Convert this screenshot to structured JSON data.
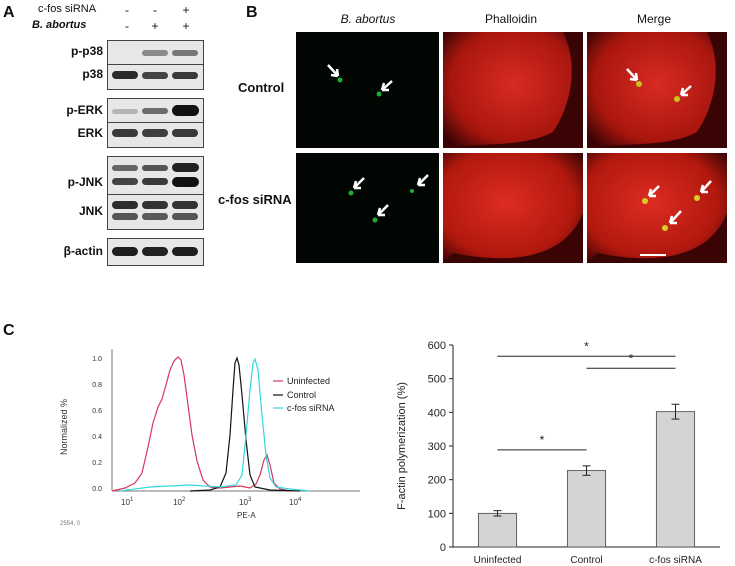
{
  "panel_a": {
    "letter": "A",
    "conditions": [
      {
        "label": "c-fos siRNA",
        "values": [
          "-",
          "-",
          "+"
        ]
      },
      {
        "label": "B. abortus",
        "values": [
          "-",
          "+",
          "+"
        ]
      }
    ],
    "blots": [
      {
        "label": "p-p38"
      },
      {
        "label": "p38"
      },
      {
        "label": "p-ERK"
      },
      {
        "label": "ERK"
      },
      {
        "label": "p-JNK"
      },
      {
        "label": "JNK"
      },
      {
        "label": "β-actin"
      }
    ]
  },
  "panel_b": {
    "letter": "B",
    "columns": [
      "B. abortus",
      "Phalloidin",
      "Merge"
    ],
    "rows": [
      "Control",
      "c-fos siRNA"
    ]
  },
  "panel_c": {
    "letter": "C",
    "histogram": {
      "ylabel": "Normalized %",
      "xlabel": "PE-A",
      "corner_label": "2554, 0",
      "y_ticks": [
        "1.0",
        "0.8",
        "0.6",
        "0.4",
        "0.2",
        "0.0"
      ],
      "x_ticks": [
        "10",
        "10",
        "10",
        "10"
      ],
      "x_tick_exponents": [
        "1",
        "2",
        "3",
        "4"
      ],
      "legend": [
        {
          "name": "Uninfected",
          "color": "#d6375a"
        },
        {
          "name": "Control",
          "color": "#111111"
        },
        {
          "name": "c-fos siRNA",
          "color": "#33d6e0"
        }
      ]
    }
  },
  "chart_data": {
    "type": "bar",
    "categories": [
      "Uninfected",
      "Control",
      "c-fos siRNA"
    ],
    "values": [
      100,
      227,
      402
    ],
    "errors": [
      8,
      14,
      22
    ],
    "ylabel": "F-actin polymerization (%)",
    "xlabel": "",
    "ylim": [
      0,
      600
    ],
    "yticks": [
      0,
      100,
      200,
      300,
      400,
      500,
      600
    ],
    "significance": [
      {
        "from": 0,
        "to": 1,
        "label": "*"
      },
      {
        "from": 0,
        "to": 2,
        "label": "*"
      },
      {
        "from": 1,
        "to": 2,
        "label": "*"
      }
    ],
    "bar_color": "#d4d4d4",
    "grid": false
  }
}
